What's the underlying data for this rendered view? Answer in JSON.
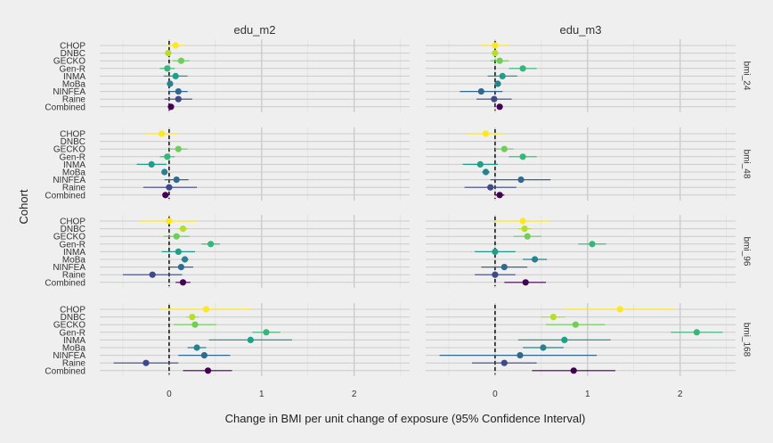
{
  "chart_data": {
    "type": "forest",
    "xlabel": "Change in BMI per unit change of exposure (95% Confidence Interval)",
    "ylabel": "Cohort",
    "xlim": [
      -0.75,
      2.6
    ],
    "x_ticks": [
      0,
      1,
      2
    ],
    "reference_line": 0,
    "grid": true,
    "columns": [
      "edu_m2",
      "edu_m3"
    ],
    "rows": [
      "bmi_24",
      "bmi_48",
      "bmi_96",
      "bmi_168"
    ],
    "cohorts": [
      "CHOP",
      "DNBC",
      "GECKO",
      "Gen-R",
      "INMA",
      "MoBa",
      "NINFEA",
      "Raine",
      "Combined"
    ],
    "cohort_colors": {
      "CHOP": "#fde725",
      "DNBC": "#b5de2b",
      "GECKO": "#6ece58",
      "Gen-R": "#35b779",
      "INMA": "#1f9e89",
      "MoBa": "#26828e",
      "NINFEA": "#31688e",
      "Raine": "#3e4989",
      "Combined": "#440154"
    },
    "panels": [
      {
        "row": "bmi_24",
        "col": "edu_m2",
        "estimates": [
          {
            "cohort": "CHOP",
            "est": 0.07,
            "lo": -0.03,
            "hi": 0.17
          },
          {
            "cohort": "DNBC",
            "est": -0.01,
            "lo": -0.05,
            "hi": 0.03
          },
          {
            "cohort": "GECKO",
            "est": 0.13,
            "lo": 0.04,
            "hi": 0.22
          },
          {
            "cohort": "Gen-R",
            "est": -0.02,
            "lo": -0.1,
            "hi": 0.06
          },
          {
            "cohort": "INMA",
            "est": 0.07,
            "lo": -0.06,
            "hi": 0.2
          },
          {
            "cohort": "MoBa",
            "est": 0.01,
            "lo": -0.01,
            "hi": 0.03
          },
          {
            "cohort": "NINFEA",
            "est": 0.1,
            "lo": 0.0,
            "hi": 0.2
          },
          {
            "cohort": "Raine",
            "est": 0.1,
            "lo": -0.05,
            "hi": 0.25
          },
          {
            "cohort": "Combined",
            "est": 0.02,
            "lo": 0.0,
            "hi": 0.04
          }
        ]
      },
      {
        "row": "bmi_24",
        "col": "edu_m3",
        "estimates": [
          {
            "cohort": "CHOP",
            "est": 0.0,
            "lo": -0.15,
            "hi": 0.15
          },
          {
            "cohort": "DNBC",
            "est": 0.0,
            "lo": -0.04,
            "hi": 0.04
          },
          {
            "cohort": "GECKO",
            "est": 0.05,
            "lo": -0.05,
            "hi": 0.15
          },
          {
            "cohort": "Gen-R",
            "est": 0.3,
            "lo": 0.15,
            "hi": 0.45
          },
          {
            "cohort": "INMA",
            "est": 0.08,
            "lo": -0.08,
            "hi": 0.24
          },
          {
            "cohort": "MoBa",
            "est": 0.03,
            "lo": 0.0,
            "hi": 0.06
          },
          {
            "cohort": "NINFEA",
            "est": -0.15,
            "lo": -0.38,
            "hi": 0.08
          },
          {
            "cohort": "Raine",
            "est": -0.01,
            "lo": -0.2,
            "hi": 0.18
          },
          {
            "cohort": "Combined",
            "est": 0.05,
            "lo": 0.02,
            "hi": 0.08
          }
        ]
      },
      {
        "row": "bmi_48",
        "col": "edu_m2",
        "estimates": [
          {
            "cohort": "CHOP",
            "est": -0.08,
            "lo": -0.25,
            "hi": 0.09
          },
          {
            "cohort": "DNBC",
            "est": null,
            "lo": null,
            "hi": null
          },
          {
            "cohort": "GECKO",
            "est": 0.1,
            "lo": 0.0,
            "hi": 0.2
          },
          {
            "cohort": "Gen-R",
            "est": -0.02,
            "lo": -0.1,
            "hi": 0.06
          },
          {
            "cohort": "INMA",
            "est": -0.19,
            "lo": -0.35,
            "hi": -0.03
          },
          {
            "cohort": "MoBa",
            "est": -0.05,
            "lo": -0.08,
            "hi": -0.02
          },
          {
            "cohort": "NINFEA",
            "est": 0.08,
            "lo": -0.05,
            "hi": 0.21
          },
          {
            "cohort": "Raine",
            "est": 0.0,
            "lo": -0.28,
            "hi": 0.3
          },
          {
            "cohort": "Combined",
            "est": -0.04,
            "lo": -0.06,
            "hi": -0.02
          }
        ]
      },
      {
        "row": "bmi_48",
        "col": "edu_m3",
        "estimates": [
          {
            "cohort": "CHOP",
            "est": -0.1,
            "lo": -0.3,
            "hi": 0.1
          },
          {
            "cohort": "DNBC",
            "est": null,
            "lo": null,
            "hi": null
          },
          {
            "cohort": "GECKO",
            "est": 0.1,
            "lo": 0.0,
            "hi": 0.2
          },
          {
            "cohort": "Gen-R",
            "est": 0.3,
            "lo": 0.15,
            "hi": 0.45
          },
          {
            "cohort": "INMA",
            "est": -0.16,
            "lo": -0.35,
            "hi": 0.03
          },
          {
            "cohort": "MoBa",
            "est": -0.1,
            "lo": -0.14,
            "hi": -0.06
          },
          {
            "cohort": "NINFEA",
            "est": 0.28,
            "lo": -0.05,
            "hi": 0.6
          },
          {
            "cohort": "Raine",
            "est": -0.05,
            "lo": -0.33,
            "hi": 0.23
          },
          {
            "cohort": "Combined",
            "est": 0.05,
            "lo": 0.0,
            "hi": 0.1
          }
        ]
      },
      {
        "row": "bmi_96",
        "col": "edu_m2",
        "estimates": [
          {
            "cohort": "CHOP",
            "est": 0.0,
            "lo": -0.32,
            "hi": 0.3
          },
          {
            "cohort": "DNBC",
            "est": 0.15,
            "lo": 0.1,
            "hi": 0.2
          },
          {
            "cohort": "GECKO",
            "est": 0.08,
            "lo": -0.06,
            "hi": 0.22
          },
          {
            "cohort": "Gen-R",
            "est": 0.45,
            "lo": 0.35,
            "hi": 0.55
          },
          {
            "cohort": "INMA",
            "est": 0.1,
            "lo": -0.08,
            "hi": 0.28
          },
          {
            "cohort": "MoBa",
            "est": 0.17,
            "lo": 0.13,
            "hi": 0.21
          },
          {
            "cohort": "NINFEA",
            "est": 0.13,
            "lo": 0.0,
            "hi": 0.26
          },
          {
            "cohort": "Raine",
            "est": -0.18,
            "lo": -0.5,
            "hi": 0.14
          },
          {
            "cohort": "Combined",
            "est": 0.15,
            "lo": 0.07,
            "hi": 0.23
          }
        ]
      },
      {
        "row": "bmi_96",
        "col": "edu_m3",
        "estimates": [
          {
            "cohort": "CHOP",
            "est": 0.3,
            "lo": 0.0,
            "hi": 0.6
          },
          {
            "cohort": "DNBC",
            "est": 0.32,
            "lo": 0.25,
            "hi": 0.39
          },
          {
            "cohort": "GECKO",
            "est": 0.35,
            "lo": 0.2,
            "hi": 0.5
          },
          {
            "cohort": "Gen-R",
            "est": 1.05,
            "lo": 0.9,
            "hi": 1.2
          },
          {
            "cohort": "INMA",
            "est": 0.0,
            "lo": -0.22,
            "hi": 0.22
          },
          {
            "cohort": "MoBa",
            "est": 0.43,
            "lo": 0.3,
            "hi": 0.56
          },
          {
            "cohort": "NINFEA",
            "est": 0.1,
            "lo": -0.15,
            "hi": 0.35
          },
          {
            "cohort": "Raine",
            "est": 0.0,
            "lo": -0.22,
            "hi": 0.22
          },
          {
            "cohort": "Combined",
            "est": 0.33,
            "lo": 0.1,
            "hi": 0.55
          }
        ]
      },
      {
        "row": "bmi_168",
        "col": "edu_m2",
        "estimates": [
          {
            "cohort": "CHOP",
            "est": 0.4,
            "lo": -0.1,
            "hi": 0.9
          },
          {
            "cohort": "DNBC",
            "est": 0.25,
            "lo": 0.18,
            "hi": 0.32
          },
          {
            "cohort": "GECKO",
            "est": 0.28,
            "lo": 0.05,
            "hi": 0.51
          },
          {
            "cohort": "Gen-R",
            "est": 1.05,
            "lo": 0.9,
            "hi": 1.2
          },
          {
            "cohort": "INMA",
            "est": 0.88,
            "lo": 0.43,
            "hi": 1.33
          },
          {
            "cohort": "MoBa",
            "est": 0.3,
            "lo": 0.2,
            "hi": 0.4
          },
          {
            "cohort": "NINFEA",
            "est": 0.38,
            "lo": 0.1,
            "hi": 0.66
          },
          {
            "cohort": "Raine",
            "est": -0.25,
            "lo": -0.6,
            "hi": 0.1
          },
          {
            "cohort": "Combined",
            "est": 0.42,
            "lo": 0.15,
            "hi": 0.68
          }
        ]
      },
      {
        "row": "bmi_168",
        "col": "edu_m3",
        "estimates": [
          {
            "cohort": "CHOP",
            "est": 1.35,
            "lo": 0.75,
            "hi": 1.95
          },
          {
            "cohort": "DNBC",
            "est": 0.63,
            "lo": 0.5,
            "hi": 0.76
          },
          {
            "cohort": "GECKO",
            "est": 0.87,
            "lo": 0.55,
            "hi": 1.19
          },
          {
            "cohort": "Gen-R",
            "est": 2.18,
            "lo": 1.9,
            "hi": 2.46
          },
          {
            "cohort": "INMA",
            "est": 0.75,
            "lo": 0.25,
            "hi": 1.25
          },
          {
            "cohort": "MoBa",
            "est": 0.52,
            "lo": 0.3,
            "hi": 0.74
          },
          {
            "cohort": "NINFEA",
            "est": 0.27,
            "lo": -0.6,
            "hi": 1.1
          },
          {
            "cohort": "Raine",
            "est": 0.1,
            "lo": -0.25,
            "hi": 0.45
          },
          {
            "cohort": "Combined",
            "est": 0.85,
            "lo": 0.4,
            "hi": 1.3
          }
        ]
      }
    ]
  }
}
